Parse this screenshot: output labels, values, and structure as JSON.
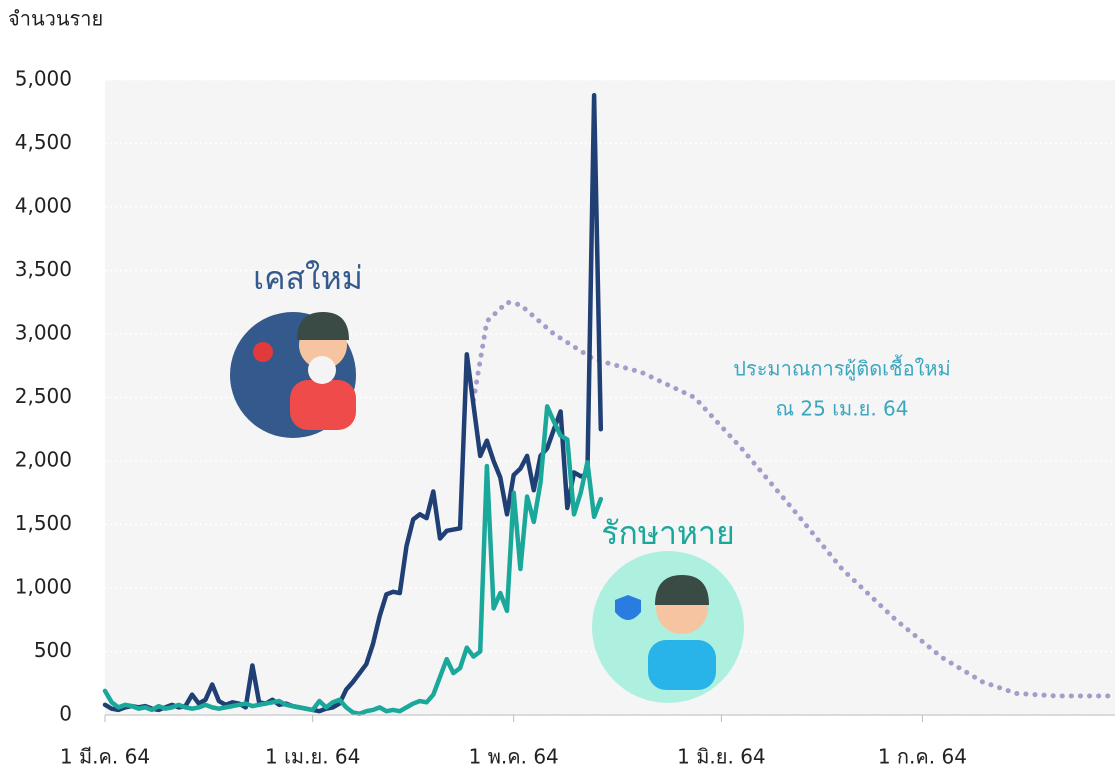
{
  "chart_data": {
    "type": "line",
    "y_axis_title": "จำนวนราย",
    "xlim": [
      0,
      150
    ],
    "xticks": [
      {
        "value": 0,
        "label": "1 มี.ค. 64"
      },
      {
        "value": 31,
        "label": "1 เม.ย. 64"
      },
      {
        "value": 61,
        "label": "1 พ.ค. 64"
      },
      {
        "value": 92,
        "label": "1 มิ.ย. 64"
      },
      {
        "value": 122,
        "label": "1 ก.ค. 64"
      }
    ],
    "ylim": [
      0,
      5000
    ],
    "yticks": [
      0,
      500,
      {
        "value": 1000,
        "label": "1,000"
      },
      {
        "value": 1500,
        "label": "1,500"
      },
      {
        "value": 2000,
        "label": "2,000"
      },
      {
        "value": 2500,
        "label": "2,500"
      },
      {
        "value": 3000,
        "label": "3,000"
      },
      {
        "value": 3500,
        "label": "3,500"
      },
      {
        "value": 4000,
        "label": "4,000"
      },
      {
        "value": 4500,
        "label": "4,500"
      },
      {
        "value": 5000,
        "label": "5,000"
      }
    ],
    "grid": true,
    "note": "ณ 25 เม.ย. 64",
    "series": [
      {
        "name": "เคสใหม่",
        "color": "#1f3f75",
        "dashed": false,
        "x": [
          0,
          1,
          2,
          3,
          4,
          5,
          6,
          7,
          8,
          9,
          10,
          11,
          12,
          13,
          14,
          15,
          16,
          17,
          18,
          19,
          20,
          21,
          22,
          23,
          24,
          25,
          26,
          27,
          28,
          29,
          30,
          31,
          32,
          33,
          34,
          35,
          36,
          37,
          38,
          39,
          40,
          41,
          42,
          43,
          44,
          45,
          46,
          47,
          48,
          49,
          50,
          51,
          52,
          53,
          54,
          55,
          56,
          57,
          58,
          59,
          60,
          61,
          62,
          63,
          64,
          65,
          66,
          67,
          68,
          69,
          70,
          71,
          72,
          73,
          74
        ],
        "values": [
          80,
          50,
          40,
          60,
          70,
          60,
          70,
          50,
          40,
          60,
          80,
          60,
          70,
          160,
          90,
          120,
          240,
          110,
          80,
          100,
          90,
          60,
          390,
          100,
          90,
          120,
          80,
          90,
          70,
          60,
          50,
          40,
          30,
          50,
          60,
          90,
          200,
          260,
          330,
          400,
          560,
          780,
          950,
          970,
          960,
          1330,
          1540,
          1580,
          1550,
          1760,
          1390,
          1450,
          1460,
          1470,
          2840,
          2440,
          2040,
          2160,
          2000,
          1870,
          1580,
          1890,
          1940,
          2040,
          1770,
          2040,
          2100,
          2250,
          2390,
          1630,
          1910,
          1880,
          1890,
          4880,
          2250
        ]
      },
      {
        "name": "รักษาหาย",
        "color": "#1aa89a",
        "dashed": false,
        "x": [
          0,
          1,
          2,
          3,
          4,
          5,
          6,
          7,
          8,
          9,
          10,
          11,
          12,
          13,
          14,
          15,
          16,
          17,
          18,
          19,
          20,
          21,
          22,
          23,
          24,
          25,
          26,
          27,
          28,
          29,
          30,
          31,
          32,
          33,
          34,
          35,
          36,
          37,
          38,
          39,
          40,
          41,
          42,
          43,
          44,
          45,
          46,
          47,
          48,
          49,
          50,
          51,
          52,
          53,
          54,
          55,
          56,
          57,
          58,
          59,
          60,
          61,
          62,
          63,
          64,
          65,
          66,
          67,
          68,
          69,
          70,
          71,
          72,
          73,
          74
        ],
        "values": [
          190,
          100,
          60,
          80,
          70,
          50,
          60,
          40,
          70,
          50,
          60,
          80,
          60,
          50,
          60,
          80,
          60,
          50,
          60,
          70,
          80,
          90,
          70,
          80,
          90,
          100,
          110,
          80,
          70,
          60,
          50,
          40,
          110,
          60,
          100,
          120,
          60,
          20,
          10,
          30,
          40,
          60,
          30,
          40,
          30,
          60,
          90,
          110,
          100,
          160,
          300,
          440,
          330,
          370,
          530,
          460,
          500,
          1960,
          840,
          960,
          820,
          1750,
          1150,
          1720,
          1520,
          1830,
          2430,
          2310,
          2200,
          2170,
          1580,
          1750,
          1990,
          1560,
          1700
        ]
      },
      {
        "name": "ประมาณการผู้ติดเชื้อใหม่",
        "color": "#a99bc9",
        "dashed": true,
        "x": [
          55,
          57,
          60,
          62,
          67,
          73,
          80,
          88,
          95,
          103,
          110,
          118,
          125,
          131,
          136,
          142,
          150
        ],
        "values": [
          2480,
          3100,
          3250,
          3230,
          3000,
          2800,
          2700,
          2500,
          2100,
          1600,
          1150,
          750,
          450,
          260,
          170,
          150,
          150
        ]
      }
    ]
  }
}
